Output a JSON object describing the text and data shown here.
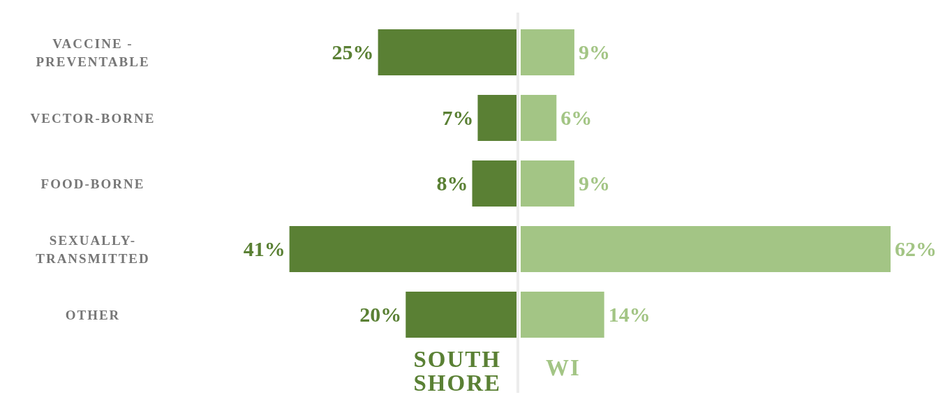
{
  "chart_data": [
    {
      "type": "bar",
      "orientation": "horizontal",
      "categories": [
        "VACCINE - PREVENTABLE",
        "VECTOR-BORNE",
        "FOOD-BORNE",
        "SEXUALLY-TRANSMITTED",
        "OTHER"
      ],
      "series": [
        {
          "name": "SOUTH SHORE",
          "color": "#5a8034",
          "values": [
            25,
            7,
            8,
            41,
            20
          ],
          "value_labels": [
            "25%",
            "7%",
            "8%",
            "41%",
            "20%"
          ]
        }
      ]
    },
    {
      "type": "bar",
      "orientation": "horizontal",
      "categories": [
        null,
        null,
        null,
        null,
        null
      ],
      "series": [
        {
          "name": "WI",
          "color": "#a3c585",
          "values": [
            9,
            6,
            9,
            62,
            14
          ],
          "value_labels": [
            "9%",
            "6%",
            "9%",
            "62%",
            "14%"
          ]
        }
      ]
    }
  ]
}
